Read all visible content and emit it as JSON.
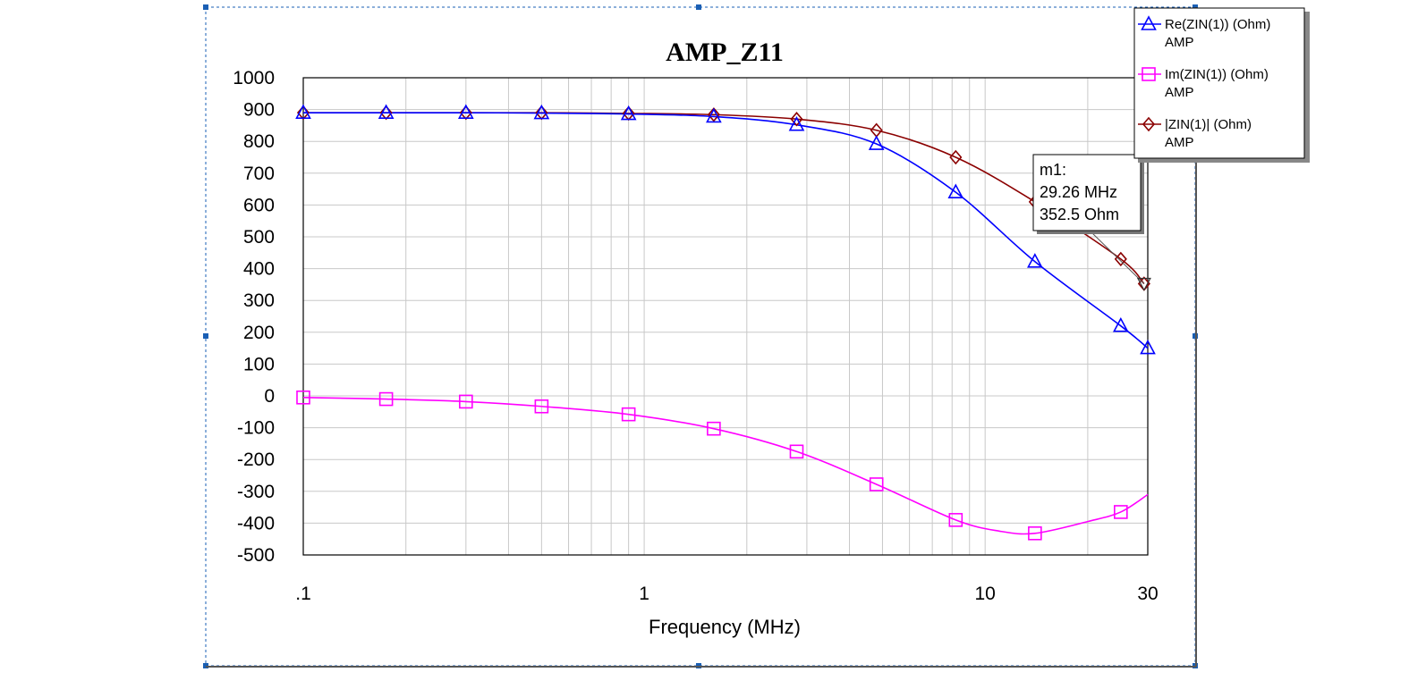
{
  "chart_data": {
    "type": "line",
    "title": "AMP_Z11",
    "xlabel": "Frequency (MHz)",
    "ylabel": "",
    "x_scale": "log",
    "xlim": [
      0.1,
      30
    ],
    "ylim": [
      -500,
      1000
    ],
    "x_ticks": [
      {
        "value": 0.1,
        "label": ".1"
      },
      {
        "value": 1,
        "label": "1"
      },
      {
        "value": 10,
        "label": "10"
      },
      {
        "value": 30,
        "label": "30"
      }
    ],
    "y_ticks": [
      1000,
      900,
      800,
      700,
      600,
      500,
      400,
      300,
      200,
      100,
      0,
      -100,
      -200,
      -300,
      -400,
      -500
    ],
    "y_tick_labels": [
      "1000",
      "900",
      "800",
      "700",
      "600",
      "500",
      "400",
      "300",
      "200",
      "100",
      "0",
      "-100",
      "-200",
      "-300",
      "-400",
      "-500"
    ],
    "grid": true,
    "legend_position": "top-right",
    "series": [
      {
        "name": "Re(ZIN(1)) (Ohm)",
        "sub": "AMP",
        "color": "#0000ff",
        "marker": "triangle",
        "marker_x": [
          0.1,
          0.175,
          0.3,
          0.5,
          0.9,
          1.6,
          2.8,
          4.8,
          8.2,
          14,
          25,
          30
        ],
        "x": [
          0.1,
          0.175,
          0.3,
          0.5,
          0.9,
          1.6,
          2.8,
          4.8,
          8.2,
          14,
          25,
          30
        ],
        "y": [
          890,
          890,
          890,
          889,
          886,
          878,
          852,
          792,
          640,
          422,
          220,
          150
        ]
      },
      {
        "name": "Im(ZIN(1)) (Ohm)",
        "sub": "AMP",
        "color": "#ff00ff",
        "marker": "square",
        "marker_x": [
          0.1,
          0.175,
          0.3,
          0.5,
          0.9,
          1.6,
          2.8,
          4.8,
          8.2,
          14,
          25
        ],
        "x": [
          0.1,
          0.175,
          0.3,
          0.5,
          0.9,
          1.6,
          2.8,
          4.8,
          8.2,
          11,
          14,
          20,
          25,
          30
        ],
        "y": [
          -5,
          -10,
          -18,
          -33,
          -58,
          -103,
          -175,
          -278,
          -390,
          -425,
          -432,
          -395,
          -365,
          -310
        ]
      },
      {
        "name": "|ZIN(1)| (Ohm)",
        "sub": "AMP",
        "color": "#8b0000",
        "marker": "diamond",
        "marker_x": [
          0.1,
          0.175,
          0.3,
          0.5,
          0.9,
          1.6,
          2.8,
          4.8,
          8.2,
          14,
          25,
          29.26
        ],
        "x": [
          0.1,
          0.175,
          0.3,
          0.5,
          0.9,
          1.6,
          2.8,
          4.8,
          8.2,
          14,
          25,
          29.26
        ],
        "y": [
          890,
          890,
          890,
          890,
          888,
          884,
          870,
          835,
          750,
          610,
          430,
          352.5
        ]
      }
    ],
    "marker_label": {
      "name": "m1:",
      "freq": "29.26 MHz",
      "value": "352.5 Ohm",
      "x": 29.26,
      "y": 352.5
    }
  }
}
